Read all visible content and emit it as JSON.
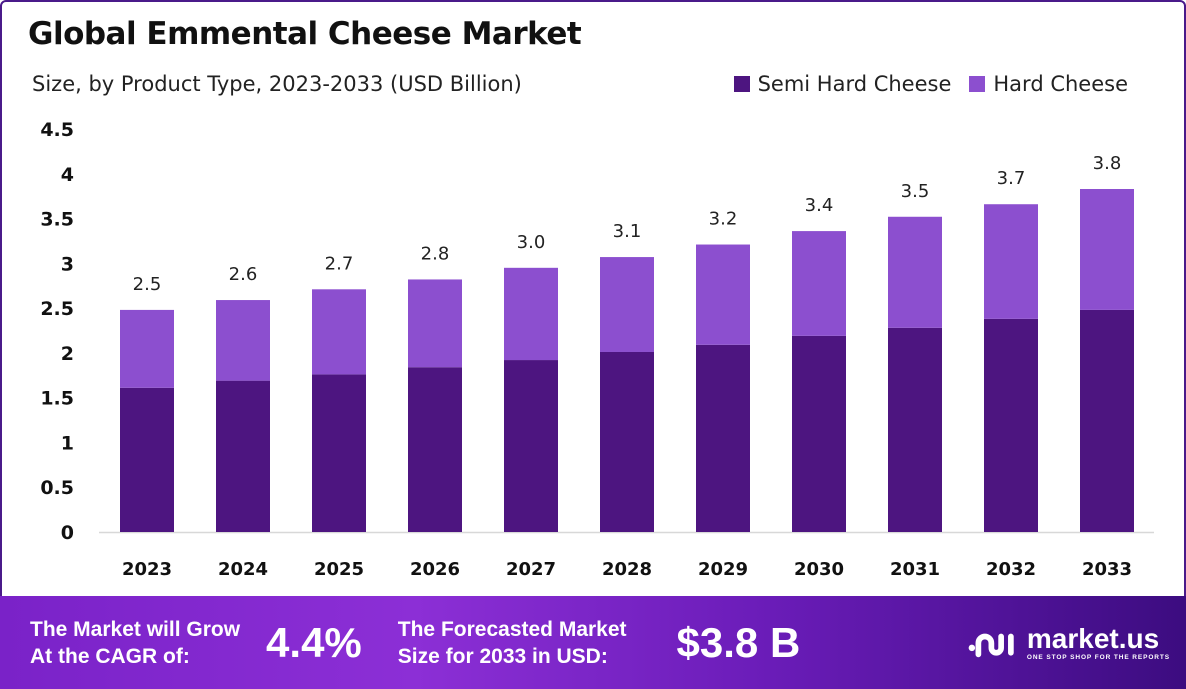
{
  "chart_data": {
    "type": "bar",
    "stacked": true,
    "title": "Global Emmental Cheese Market",
    "subtitle": "Size, by Product Type, 2023-2033 (USD Billion)",
    "xlabel": "",
    "ylabel": "",
    "ylim": [
      0,
      4.5
    ],
    "yticks": [
      "0",
      "0.5",
      "1",
      "1.5",
      "2",
      "2.5",
      "3",
      "3.5",
      "4",
      "4.5"
    ],
    "categories": [
      "2023",
      "2024",
      "2025",
      "2026",
      "2027",
      "2028",
      "2029",
      "2030",
      "2031",
      "2032",
      "2033"
    ],
    "series": [
      {
        "name": "Semi Hard Cheese",
        "color": "#4d1580",
        "values": [
          1.61,
          1.69,
          1.76,
          1.84,
          1.92,
          2.01,
          2.09,
          2.19,
          2.28,
          2.38,
          2.48
        ]
      },
      {
        "name": "Hard Cheese",
        "color": "#8c4fcf",
        "values": [
          0.87,
          0.9,
          0.95,
          0.98,
          1.03,
          1.06,
          1.12,
          1.17,
          1.24,
          1.28,
          1.35
        ]
      }
    ],
    "totals_labels": [
      "2.5",
      "2.6",
      "2.7",
      "2.8",
      "3.0",
      "3.1",
      "3.2",
      "3.4",
      "3.5",
      "3.7",
      "3.8"
    ],
    "legend_position": "top-right",
    "grid": false
  },
  "footer": {
    "cagr_label_line1": "The Market will Grow",
    "cagr_label_line2": "At the CAGR of:",
    "cagr_value": "4.4%",
    "forecast_label_line1": "The Forecasted Market",
    "forecast_label_line2": "Size for 2033 in USD:",
    "forecast_value": "$3.8 B",
    "logo_name": "market.us",
    "logo_tagline": "ONE STOP SHOP FOR THE REPORTS"
  }
}
